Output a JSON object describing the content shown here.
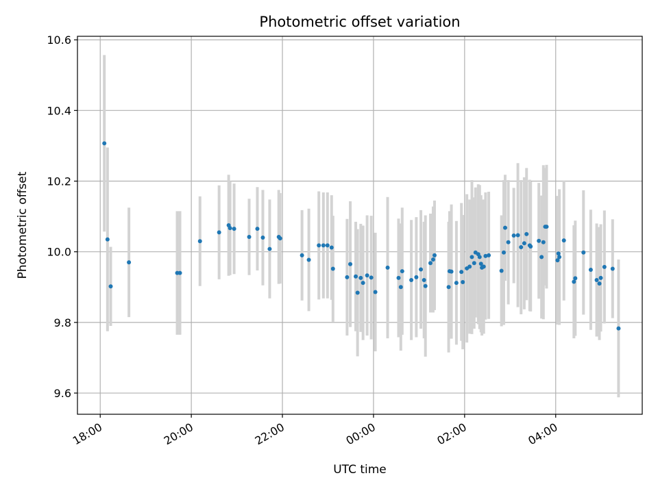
{
  "chart_data": {
    "type": "scatter",
    "title": "Photometric offset variation",
    "xlabel": "UTC time",
    "ylabel": "Photometric offset",
    "x_unit": "hours",
    "xlim": [
      17.5,
      29.9
    ],
    "ylim": [
      9.54,
      10.61
    ],
    "x_ticks": [
      {
        "value": 18,
        "label": "18:00"
      },
      {
        "value": 20,
        "label": "20:00"
      },
      {
        "value": 22,
        "label": "22:00"
      },
      {
        "value": 24,
        "label": "00:00"
      },
      {
        "value": 26,
        "label": "02:00"
      },
      {
        "value": 28,
        "label": "04:00"
      }
    ],
    "y_ticks": [
      {
        "value": 9.6,
        "label": "9.6"
      },
      {
        "value": 9.8,
        "label": "9.8"
      },
      {
        "value": 10.0,
        "label": "10.0"
      },
      {
        "value": 10.2,
        "label": "10.2"
      },
      {
        "value": 10.4,
        "label": "10.4"
      },
      {
        "value": 10.6,
        "label": "10.6"
      }
    ],
    "grid": true,
    "marker_color": "#1f77b4",
    "errorbar_color": "#d3d3d3",
    "series": [
      {
        "x": [
          18.09,
          18.16,
          18.23,
          18.63,
          19.69,
          19.75,
          20.19,
          20.61,
          20.82,
          20.85,
          20.94,
          21.27,
          21.45,
          21.57,
          21.72,
          21.92,
          21.95,
          22.43,
          22.58,
          22.8,
          22.9,
          22.99,
          23.08,
          23.11,
          23.42,
          23.49,
          23.61,
          23.65,
          23.72,
          23.77,
          23.86,
          23.95,
          24.04,
          24.31,
          24.55,
          24.6,
          24.63,
          24.83,
          24.94,
          25.04,
          25.11,
          25.14,
          25.25,
          25.31,
          25.34,
          25.65,
          25.67,
          25.71,
          25.82,
          25.93,
          25.96,
          26.05,
          26.11,
          26.16,
          26.21,
          26.24,
          26.3,
          26.33,
          26.36,
          26.38,
          26.42,
          26.46,
          26.53,
          26.81,
          26.86,
          26.89,
          26.96,
          27.08,
          27.17,
          27.24,
          27.31,
          27.36,
          27.43,
          27.45,
          27.63,
          27.69,
          27.73,
          27.77,
          27.8,
          28.04,
          28.06,
          28.08,
          28.18,
          28.4,
          28.43,
          28.61,
          28.77,
          28.9,
          28.96,
          28.99,
          29.07,
          29.25,
          29.38
        ],
        "y": [
          10.307,
          10.035,
          9.902,
          9.97,
          9.94,
          9.94,
          10.03,
          10.055,
          10.075,
          10.067,
          10.065,
          10.042,
          10.065,
          10.04,
          10.008,
          10.042,
          10.038,
          9.99,
          9.977,
          10.018,
          10.018,
          10.018,
          10.012,
          9.952,
          9.928,
          9.965,
          9.93,
          9.884,
          9.926,
          9.912,
          9.933,
          9.927,
          9.886,
          9.955,
          9.926,
          9.9,
          9.945,
          9.92,
          9.928,
          9.95,
          9.92,
          9.903,
          9.968,
          9.978,
          9.99,
          9.9,
          9.945,
          9.944,
          9.912,
          9.943,
          9.914,
          9.953,
          9.958,
          9.985,
          9.968,
          9.998,
          9.993,
          9.985,
          9.966,
          9.955,
          9.958,
          9.988,
          9.99,
          9.946,
          9.998,
          10.068,
          10.027,
          10.046,
          10.047,
          10.013,
          10.024,
          10.05,
          10.018,
          10.015,
          10.031,
          9.985,
          10.027,
          10.071,
          10.071,
          9.976,
          9.995,
          9.985,
          10.032,
          9.915,
          9.925,
          9.998,
          9.949,
          9.92,
          9.91,
          9.926,
          9.957,
          9.952,
          9.783
        ],
        "err": [
          0.25,
          0.26,
          0.112,
          0.155,
          0.175,
          0.175,
          0.127,
          0.133,
          0.143,
          0.133,
          0.128,
          0.108,
          0.118,
          0.135,
          0.14,
          0.133,
          0.128,
          0.128,
          0.145,
          0.153,
          0.15,
          0.15,
          0.148,
          0.15,
          0.165,
          0.178,
          0.155,
          0.18,
          0.153,
          0.162,
          0.17,
          0.175,
          0.168,
          0.2,
          0.168,
          0.18,
          0.18,
          0.17,
          0.17,
          0.168,
          0.165,
          0.2,
          0.14,
          0.15,
          0.155,
          0.185,
          0.17,
          0.19,
          0.175,
          0.195,
          0.19,
          0.21,
          0.19,
          0.218,
          0.186,
          0.184,
          0.198,
          0.204,
          0.194,
          0.192,
          0.19,
          0.18,
          0.18,
          0.157,
          0.205,
          0.15,
          0.176,
          0.135,
          0.204,
          0.19,
          0.187,
          0.187,
          0.186,
          0.184,
          0.164,
          0.174,
          0.218,
          0.166,
          0.175,
          0.182,
          0.13,
          0.192,
          0.17,
          0.16,
          0.163,
          0.176,
          0.17,
          0.16,
          0.16,
          0.152,
          0.16,
          0.14,
          0.195
        ]
      }
    ]
  }
}
